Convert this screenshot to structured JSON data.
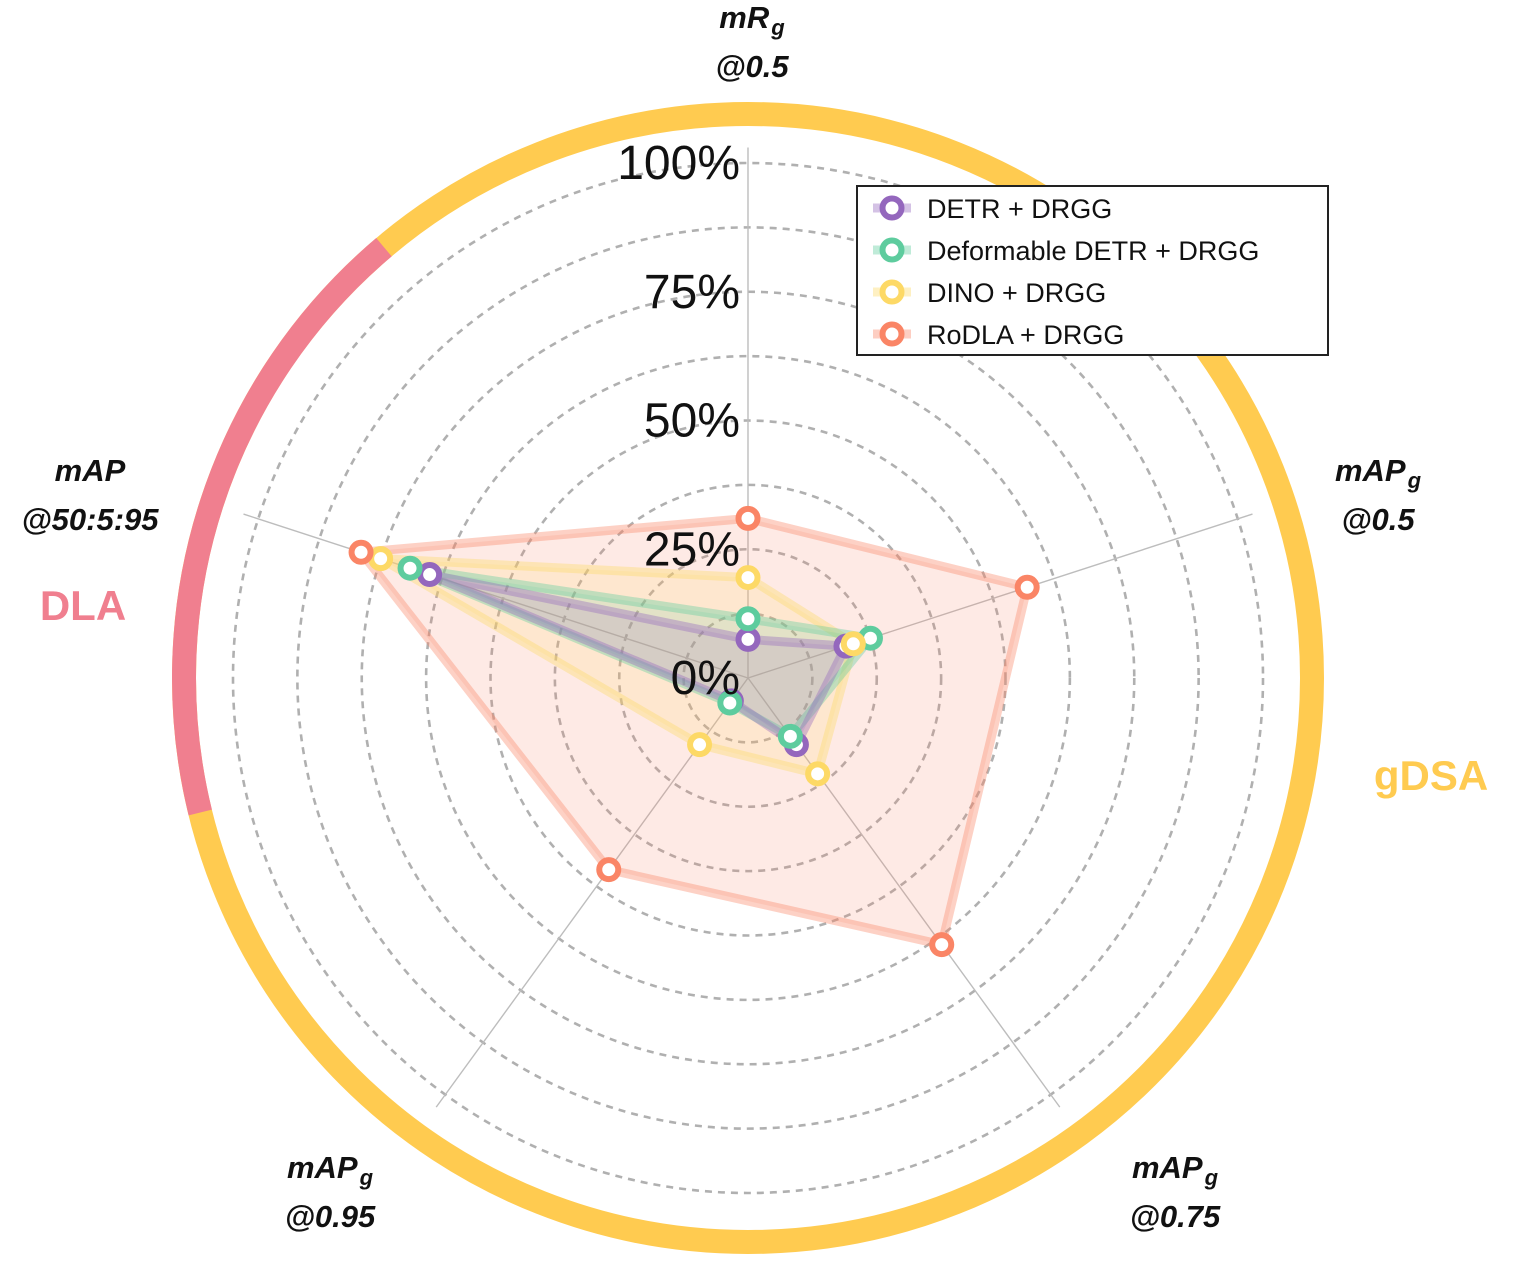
{
  "chart_data": {
    "type": "radar",
    "title": "",
    "axes": [
      {
        "name": "mR",
        "subscript": "g",
        "second_line": "@0.5"
      },
      {
        "name": "mAP",
        "subscript": "g",
        "second_line": "@0.5"
      },
      {
        "name": "mAP",
        "subscript": "g",
        "second_line": "@0.75"
      },
      {
        "name": "mAP",
        "subscript": "g",
        "second_line": "@0.95"
      },
      {
        "name": "mAP",
        "subscript": "",
        "second_line": "@50:5:95"
      }
    ],
    "radial_ticks": [
      0,
      25,
      50,
      75,
      100
    ],
    "radial_tick_labels": [
      "0%",
      "25%",
      "50%",
      "75%",
      "100%"
    ],
    "rmax": 100,
    "grid": true,
    "legend_position": "top-right",
    "series": [
      {
        "name": "DETR + DRGG",
        "color": "#9467bd",
        "values": [
          7.5,
          20,
          16,
          5.5,
          65
        ]
      },
      {
        "name": "Deformable DETR + DRGG",
        "color": "#5ecc9e",
        "values": [
          11.5,
          25,
          14,
          6,
          69
        ]
      },
      {
        "name": "DINO + DRGG",
        "color": "#fdd966",
        "values": [
          19.5,
          21.5,
          23,
          16,
          75
        ]
      },
      {
        "name": "RoDLA + DRGG",
        "color": "#fa8566",
        "values": [
          31,
          57,
          64,
          46,
          79
        ]
      }
    ],
    "groups": [
      {
        "name": "DLA",
        "color": "#f07f8f",
        "axes": [
          "mAP@50:5:95"
        ]
      },
      {
        "name": "gDSA",
        "color": "#ffcb50",
        "axes": [
          "mR_g@0.5",
          "mAP_g@0.5",
          "mAP_g@0.75",
          "mAP_g@0.95"
        ]
      }
    ]
  }
}
